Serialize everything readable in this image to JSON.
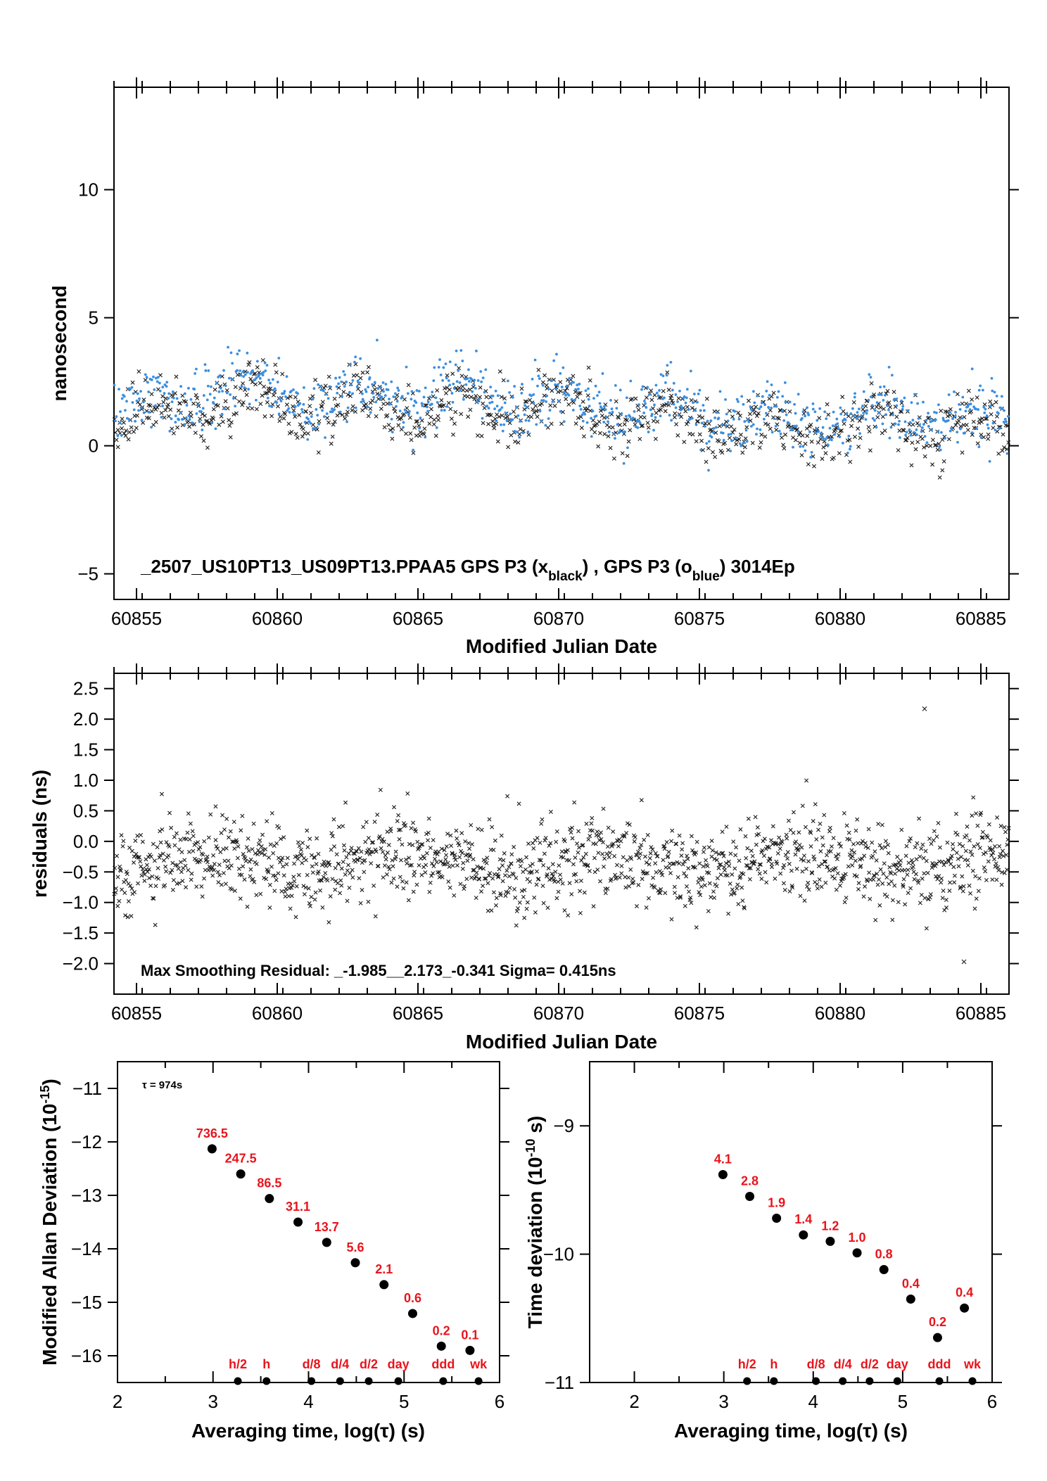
{
  "colors": {
    "black_series": "#1a1a1a",
    "blue_series": "#3a8ee0",
    "label_red": "#e8141c",
    "axis": "#000000"
  },
  "chart_data": [
    {
      "type": "scatter",
      "xlabel": "Modified Julian Date",
      "ylabel": "nanosecond",
      "xlim": [
        60854.2,
        60886.0
      ],
      "ylim": [
        -6,
        14
      ],
      "x_ticks": [
        60855,
        60860,
        60865,
        60870,
        60875,
        60880,
        60885
      ],
      "x_tick_labels": [
        "60855",
        "60860",
        "60865",
        "60870",
        "60875",
        "60880",
        "60885"
      ],
      "y_ticks": [
        -5,
        0,
        5,
        10
      ],
      "y_tick_labels": [
        "−5",
        "0",
        "5",
        "10"
      ],
      "annotation": {
        "prefix": "_2507_US10PT13_US09PT13.PPAA5     GPS P3 (x",
        "sub1": "black",
        "mid": ") ,  GPS P3 (o",
        "sub2": "blue",
        "suffix": ")  3014Ep"
      },
      "series": [
        {
          "marker": "x",
          "color": "#1a1a1a",
          "points_count": 3014,
          "trend_x": [
            60854.2,
            60858,
            60862,
            60866,
            60870,
            60874,
            60878,
            60882,
            60886
          ],
          "trend_y": [
            0.8,
            1.8,
            1.5,
            1.5,
            1.3,
            1.1,
            0.6,
            0.9,
            0.5
          ],
          "spread": 0.6
        },
        {
          "marker": "o",
          "color": "#3a8ee0",
          "points_count": 3014,
          "trend_x": [
            60854.2,
            60858,
            60862,
            60866,
            60870,
            60874,
            60878,
            60882,
            60886
          ],
          "trend_y": [
            1.1,
            2.3,
            1.8,
            2.0,
            1.8,
            1.5,
            0.9,
            1.3,
            0.8
          ],
          "spread": 0.6
        }
      ]
    },
    {
      "type": "scatter",
      "xlabel": "Modified Julian Date",
      "ylabel": "residuals (ns)",
      "xlim": [
        60854.2,
        60886.0
      ],
      "ylim": [
        -2.5,
        2.75
      ],
      "x_ticks": [
        60855,
        60860,
        60865,
        60870,
        60875,
        60880,
        60885
      ],
      "x_tick_labels": [
        "60855",
        "60860",
        "60865",
        "60870",
        "60875",
        "60880",
        "60885"
      ],
      "y_ticks": [
        -2.0,
        -1.5,
        -1.0,
        -0.5,
        0.0,
        0.5,
        1.0,
        1.5,
        2.0,
        2.5
      ],
      "y_tick_labels": [
        "−2.0",
        "−1.5",
        "−1.0",
        "−0.5",
        "0.0",
        "0.5",
        "1.0",
        "1.5",
        "2.0",
        "2.5"
      ],
      "annotation": "Max Smoothing Residual: _-1.985__2.173_-0.341  Sigma= 0.415ns",
      "series": [
        {
          "marker": "x",
          "color": "#1a1a1a",
          "points_count": 3014,
          "mean": -0.34,
          "sigma": 0.415
        }
      ]
    },
    {
      "type": "scatter",
      "xlabel_prefix": "Averaging time, log(",
      "xlabel_tau": "τ",
      "xlabel_suffix": ") (s)",
      "ylabel_prefix": "Modified Allan Deviation (10",
      "ylabel_exp": "-15",
      "ylabel_suffix": ")",
      "xlim": [
        2,
        6
      ],
      "ylim": [
        -16.5,
        -10.5
      ],
      "x_ticks": [
        2,
        3,
        4,
        5,
        6
      ],
      "x_tick_labels": [
        "2",
        "3",
        "4",
        "5",
        "6"
      ],
      "y_ticks": [
        -16,
        -15,
        -14,
        -13,
        -12,
        -11
      ],
      "y_tick_labels": [
        "−16",
        "−15",
        "−14",
        "−13",
        "−12",
        "−11"
      ],
      "tau_note": "τ = 974s",
      "points": [
        {
          "x": 2.99,
          "y": -12.13,
          "label": "736.5"
        },
        {
          "x": 3.29,
          "y": -12.6,
          "label": "247.5"
        },
        {
          "x": 3.59,
          "y": -13.06,
          "label": "86.5"
        },
        {
          "x": 3.89,
          "y": -13.5,
          "label": "31.1"
        },
        {
          "x": 4.19,
          "y": -13.88,
          "label": "13.7"
        },
        {
          "x": 4.49,
          "y": -14.26,
          "label": "5.6"
        },
        {
          "x": 4.79,
          "y": -14.67,
          "label": "2.1"
        },
        {
          "x": 5.09,
          "y": -15.21,
          "label": "0.6"
        },
        {
          "x": 5.39,
          "y": -15.82,
          "label": "0.2"
        },
        {
          "x": 5.69,
          "y": -15.9,
          "label": "0.1"
        }
      ],
      "time_markers": [
        {
          "x": 3.26,
          "label": "h/2"
        },
        {
          "x": 3.56,
          "label": "h"
        },
        {
          "x": 4.03,
          "label": "d/8"
        },
        {
          "x": 4.33,
          "label": "d/4"
        },
        {
          "x": 4.63,
          "label": "d/2"
        },
        {
          "x": 4.94,
          "label": "day"
        },
        {
          "x": 5.41,
          "label": "ddd"
        },
        {
          "x": 5.78,
          "label": "wk"
        }
      ]
    },
    {
      "type": "scatter",
      "xlabel_prefix": "Averaging time, log(",
      "xlabel_tau": "τ",
      "xlabel_suffix": ") (s)",
      "ylabel_prefix": "Time deviation (10",
      "ylabel_exp": "-10",
      "ylabel_suffix": " s)",
      "xlim": [
        1.5,
        6.0
      ],
      "ylim": [
        -11.0,
        -8.5
      ],
      "x_ticks": [
        2,
        3,
        4,
        5,
        6
      ],
      "x_tick_labels": [
        "2",
        "3",
        "4",
        "5",
        "6"
      ],
      "y_ticks": [
        -11,
        -10,
        -9
      ],
      "y_tick_labels": [
        "−11",
        "−10",
        "−9"
      ],
      "points": [
        {
          "x": 2.99,
          "y": -9.38,
          "label": "4.1"
        },
        {
          "x": 3.29,
          "y": -9.55,
          "label": "2.8"
        },
        {
          "x": 3.59,
          "y": -9.72,
          "label": "1.9"
        },
        {
          "x": 3.89,
          "y": -9.85,
          "label": "1.4"
        },
        {
          "x": 4.19,
          "y": -9.9,
          "label": "1.2"
        },
        {
          "x": 4.49,
          "y": -9.99,
          "label": "1.0"
        },
        {
          "x": 4.79,
          "y": -10.12,
          "label": "0.8"
        },
        {
          "x": 5.09,
          "y": -10.35,
          "label": "0.4"
        },
        {
          "x": 5.39,
          "y": -10.65,
          "label": "0.2"
        },
        {
          "x": 5.69,
          "y": -10.42,
          "label": "0.4"
        }
      ],
      "time_markers": [
        {
          "x": 3.26,
          "label": "h/2"
        },
        {
          "x": 3.56,
          "label": "h"
        },
        {
          "x": 4.03,
          "label": "d/8"
        },
        {
          "x": 4.33,
          "label": "d/4"
        },
        {
          "x": 4.63,
          "label": "d/2"
        },
        {
          "x": 4.94,
          "label": "day"
        },
        {
          "x": 5.41,
          "label": "ddd"
        },
        {
          "x": 5.78,
          "label": "wk"
        }
      ]
    }
  ]
}
